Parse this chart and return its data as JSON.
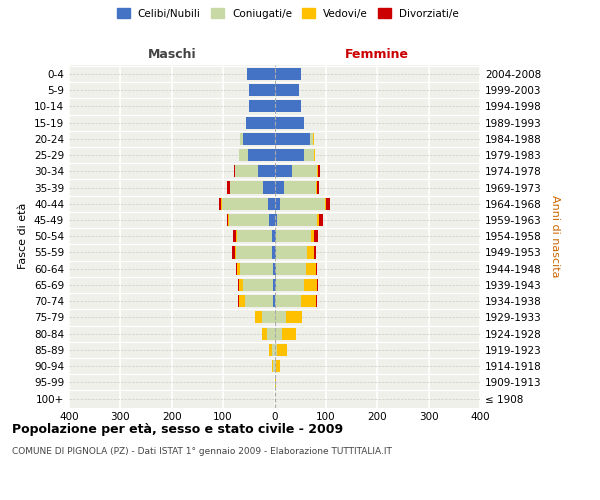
{
  "age_groups": [
    "100+",
    "95-99",
    "90-94",
    "85-89",
    "80-84",
    "75-79",
    "70-74",
    "65-69",
    "60-64",
    "55-59",
    "50-54",
    "45-49",
    "40-44",
    "35-39",
    "30-34",
    "25-29",
    "20-24",
    "15-19",
    "10-14",
    "5-9",
    "0-4"
  ],
  "birth_years": [
    "≤ 1908",
    "1909-1913",
    "1914-1918",
    "1919-1923",
    "1924-1928",
    "1929-1933",
    "1934-1938",
    "1939-1943",
    "1944-1948",
    "1949-1953",
    "1954-1958",
    "1959-1963",
    "1964-1968",
    "1969-1973",
    "1974-1978",
    "1979-1983",
    "1984-1988",
    "1989-1993",
    "1994-1998",
    "1999-2003",
    "2004-2008"
  ],
  "males_celibi": [
    0,
    0,
    0,
    0,
    0,
    0,
    2,
    2,
    3,
    5,
    5,
    10,
    12,
    22,
    32,
    52,
    62,
    55,
    50,
    50,
    53
  ],
  "males_coniugati": [
    0,
    0,
    2,
    5,
    15,
    25,
    55,
    60,
    65,
    70,
    68,
    78,
    90,
    65,
    45,
    18,
    5,
    0,
    0,
    0,
    0
  ],
  "males_vedovi": [
    0,
    0,
    2,
    5,
    10,
    12,
    12,
    8,
    5,
    2,
    2,
    2,
    2,
    0,
    0,
    0,
    0,
    0,
    0,
    0,
    0
  ],
  "males_divorziati": [
    0,
    0,
    0,
    0,
    0,
    0,
    3,
    2,
    2,
    5,
    5,
    3,
    5,
    5,
    2,
    0,
    0,
    0,
    0,
    0,
    0
  ],
  "females_nubili": [
    0,
    0,
    0,
    0,
    0,
    0,
    0,
    2,
    2,
    2,
    3,
    5,
    10,
    18,
    35,
    58,
    70,
    58,
    52,
    48,
    52
  ],
  "females_coniugate": [
    0,
    0,
    2,
    5,
    14,
    23,
    52,
    55,
    60,
    62,
    68,
    78,
    88,
    62,
    48,
    18,
    5,
    0,
    0,
    0,
    0
  ],
  "females_vedove": [
    0,
    3,
    8,
    20,
    28,
    30,
    28,
    25,
    18,
    12,
    5,
    3,
    3,
    2,
    2,
    2,
    2,
    0,
    0,
    0,
    0
  ],
  "females_divorziate": [
    0,
    0,
    0,
    0,
    0,
    0,
    3,
    2,
    3,
    5,
    8,
    8,
    8,
    5,
    3,
    0,
    0,
    0,
    0,
    0,
    0
  ],
  "color_celibi": "#4472c4",
  "color_coniugati": "#c8d9a5",
  "color_vedovi": "#ffc000",
  "color_divorziati": "#cc0000",
  "xlim": [
    -400,
    400
  ],
  "xticks": [
    -400,
    -300,
    -200,
    -100,
    0,
    100,
    200,
    300,
    400
  ],
  "xtick_labels": [
    "400",
    "300",
    "200",
    "100",
    "0",
    "100",
    "200",
    "300",
    "400"
  ],
  "title": "Popolazione per età, sesso e stato civile - 2009",
  "subtitle": "COMUNE DI PIGNOLA (PZ) - Dati ISTAT 1° gennaio 2009 - Elaborazione TUTTITALIA.IT",
  "ylabel_left": "Fasce di età",
  "ylabel_right": "Anni di nascita",
  "header_maschi": "Maschi",
  "header_femmine": "Femmine",
  "legend_labels": [
    "Celibi/Nubili",
    "Coniugati/e",
    "Vedovi/e",
    "Divorziati/e"
  ],
  "bg_color": "#f0f0eb",
  "bar_height": 0.75
}
